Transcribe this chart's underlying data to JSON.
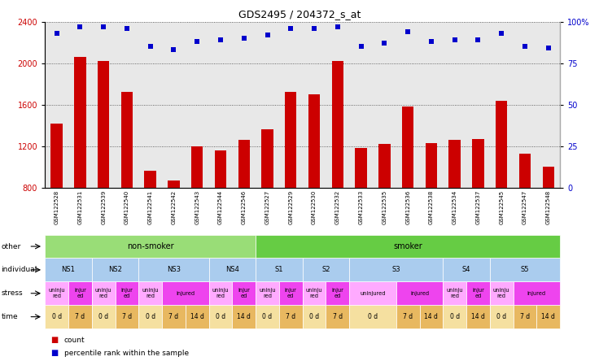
{
  "title": "GDS2495 / 204372_s_at",
  "samples": [
    "GSM122528",
    "GSM122531",
    "GSM122539",
    "GSM122540",
    "GSM122541",
    "GSM122542",
    "GSM122543",
    "GSM122544",
    "GSM122546",
    "GSM122527",
    "GSM122529",
    "GSM122530",
    "GSM122532",
    "GSM122533",
    "GSM122535",
    "GSM122536",
    "GSM122538",
    "GSM122534",
    "GSM122537",
    "GSM122545",
    "GSM122547",
    "GSM122548"
  ],
  "counts": [
    1420,
    2060,
    2020,
    1720,
    960,
    870,
    1200,
    1160,
    1260,
    1360,
    1720,
    1700,
    2020,
    1180,
    1220,
    1580,
    1230,
    1260,
    1270,
    1640,
    1130,
    1000
  ],
  "percentiles": [
    93,
    97,
    97,
    96,
    85,
    83,
    88,
    89,
    90,
    92,
    96,
    96,
    97,
    85,
    87,
    94,
    88,
    89,
    89,
    93,
    85,
    84
  ],
  "bar_color": "#cc0000",
  "dot_color": "#0000cc",
  "ylim_left": [
    800,
    2400
  ],
  "ylim_right": [
    0,
    100
  ],
  "yticks_left": [
    800,
    1200,
    1600,
    2000,
    2400
  ],
  "yticks_right": [
    0,
    25,
    50,
    75,
    100
  ],
  "individual_row": [
    {
      "label": "NS1",
      "span": [
        0,
        2
      ],
      "color": "#aaccee"
    },
    {
      "label": "NS2",
      "span": [
        2,
        4
      ],
      "color": "#aaccee"
    },
    {
      "label": "NS3",
      "span": [
        4,
        7
      ],
      "color": "#aaccee"
    },
    {
      "label": "NS4",
      "span": [
        7,
        9
      ],
      "color": "#aaccee"
    },
    {
      "label": "S1",
      "span": [
        9,
        11
      ],
      "color": "#aaccee"
    },
    {
      "label": "S2",
      "span": [
        11,
        13
      ],
      "color": "#aaccee"
    },
    {
      "label": "S3",
      "span": [
        13,
        17
      ],
      "color": "#aaccee"
    },
    {
      "label": "S4",
      "span": [
        17,
        19
      ],
      "color": "#aaccee"
    },
    {
      "label": "S5",
      "span": [
        19,
        22
      ],
      "color": "#aaccee"
    }
  ],
  "stress_row": [
    {
      "label": "uninju\nred",
      "span": [
        0,
        1
      ],
      "color": "#ffaaff"
    },
    {
      "label": "injur\ned",
      "span": [
        1,
        2
      ],
      "color": "#ee44ee"
    },
    {
      "label": "uninju\nred",
      "span": [
        2,
        3
      ],
      "color": "#ffaaff"
    },
    {
      "label": "injur\ned",
      "span": [
        3,
        4
      ],
      "color": "#ee44ee"
    },
    {
      "label": "uninju\nred",
      "span": [
        4,
        5
      ],
      "color": "#ffaaff"
    },
    {
      "label": "injured",
      "span": [
        5,
        7
      ],
      "color": "#ee44ee"
    },
    {
      "label": "uninju\nred",
      "span": [
        7,
        8
      ],
      "color": "#ffaaff"
    },
    {
      "label": "injur\ned",
      "span": [
        8,
        9
      ],
      "color": "#ee44ee"
    },
    {
      "label": "uninju\nred",
      "span": [
        9,
        10
      ],
      "color": "#ffaaff"
    },
    {
      "label": "injur\ned",
      "span": [
        10,
        11
      ],
      "color": "#ee44ee"
    },
    {
      "label": "uninju\nred",
      "span": [
        11,
        12
      ],
      "color": "#ffaaff"
    },
    {
      "label": "injur\ned",
      "span": [
        12,
        13
      ],
      "color": "#ee44ee"
    },
    {
      "label": "uninjured",
      "span": [
        13,
        15
      ],
      "color": "#ffaaff"
    },
    {
      "label": "injured",
      "span": [
        15,
        17
      ],
      "color": "#ee44ee"
    },
    {
      "label": "uninju\nred",
      "span": [
        17,
        18
      ],
      "color": "#ffaaff"
    },
    {
      "label": "injur\ned",
      "span": [
        18,
        19
      ],
      "color": "#ee44ee"
    },
    {
      "label": "uninju\nred",
      "span": [
        19,
        20
      ],
      "color": "#ffaaff"
    },
    {
      "label": "injured",
      "span": [
        20,
        22
      ],
      "color": "#ee44ee"
    }
  ],
  "time_row": [
    {
      "label": "0 d",
      "span": [
        0,
        1
      ],
      "color": "#f5e0a0"
    },
    {
      "label": "7 d",
      "span": [
        1,
        2
      ],
      "color": "#e8b860"
    },
    {
      "label": "0 d",
      "span": [
        2,
        3
      ],
      "color": "#f5e0a0"
    },
    {
      "label": "7 d",
      "span": [
        3,
        4
      ],
      "color": "#e8b860"
    },
    {
      "label": "0 d",
      "span": [
        4,
        5
      ],
      "color": "#f5e0a0"
    },
    {
      "label": "7 d",
      "span": [
        5,
        6
      ],
      "color": "#e8b860"
    },
    {
      "label": "14 d",
      "span": [
        6,
        7
      ],
      "color": "#e8b860"
    },
    {
      "label": "0 d",
      "span": [
        7,
        8
      ],
      "color": "#f5e0a0"
    },
    {
      "label": "14 d",
      "span": [
        8,
        9
      ],
      "color": "#e8b860"
    },
    {
      "label": "0 d",
      "span": [
        9,
        10
      ],
      "color": "#f5e0a0"
    },
    {
      "label": "7 d",
      "span": [
        10,
        11
      ],
      "color": "#e8b860"
    },
    {
      "label": "0 d",
      "span": [
        11,
        12
      ],
      "color": "#f5e0a0"
    },
    {
      "label": "7 d",
      "span": [
        12,
        13
      ],
      "color": "#e8b860"
    },
    {
      "label": "0 d",
      "span": [
        13,
        15
      ],
      "color": "#f5e0a0"
    },
    {
      "label": "7 d",
      "span": [
        15,
        16
      ],
      "color": "#e8b860"
    },
    {
      "label": "14 d",
      "span": [
        16,
        17
      ],
      "color": "#e8b860"
    },
    {
      "label": "0 d",
      "span": [
        17,
        18
      ],
      "color": "#f5e0a0"
    },
    {
      "label": "14 d",
      "span": [
        18,
        19
      ],
      "color": "#e8b860"
    },
    {
      "label": "0 d",
      "span": [
        19,
        20
      ],
      "color": "#f5e0a0"
    },
    {
      "label": "7 d",
      "span": [
        20,
        21
      ],
      "color": "#e8b860"
    },
    {
      "label": "14 d",
      "span": [
        21,
        22
      ],
      "color": "#e8b860"
    }
  ],
  "plot_bg": "#ffffff",
  "fig_bg": "#ffffff",
  "chart_bg": "#e8e8e8",
  "n_samples": 22
}
